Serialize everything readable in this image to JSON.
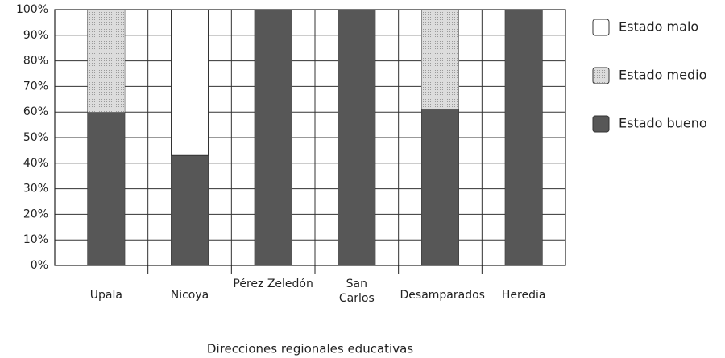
{
  "chart_data": {
    "type": "stacked_bar",
    "x_label": "Direcciones regionales educativas",
    "categories": [
      "Upala",
      "Nicoya",
      "Pérez Zeledón",
      "San Carlos",
      "Desamparados",
      "Heredia"
    ],
    "series": [
      {
        "name": "Estado bueno",
        "color": "#575757",
        "values": [
          60,
          43,
          100,
          100,
          61,
          100
        ]
      },
      {
        "name": "Estado medio",
        "color": "#cfcfcf",
        "values": [
          40,
          0,
          0,
          0,
          39,
          0
        ]
      },
      {
        "name": "Estado malo",
        "color": "#ffffff",
        "values": [
          0,
          57,
          0,
          0,
          0,
          0
        ]
      }
    ],
    "ylim": [
      0,
      100
    ],
    "yticks": [
      {
        "value": 0,
        "label": "0%"
      },
      {
        "value": 10,
        "label": "10%"
      },
      {
        "value": 20,
        "label": "20%"
      },
      {
        "value": 30,
        "label": "30%"
      },
      {
        "value": 40,
        "label": "40%"
      },
      {
        "value": 50,
        "label": "50%"
      },
      {
        "value": 60,
        "label": "60%"
      },
      {
        "value": 70,
        "label": "70%"
      },
      {
        "value": 80,
        "label": "80%"
      },
      {
        "value": 90,
        "label": "90%"
      },
      {
        "value": 100,
        "label": "100%"
      }
    ],
    "grid": true,
    "legend": "right"
  }
}
